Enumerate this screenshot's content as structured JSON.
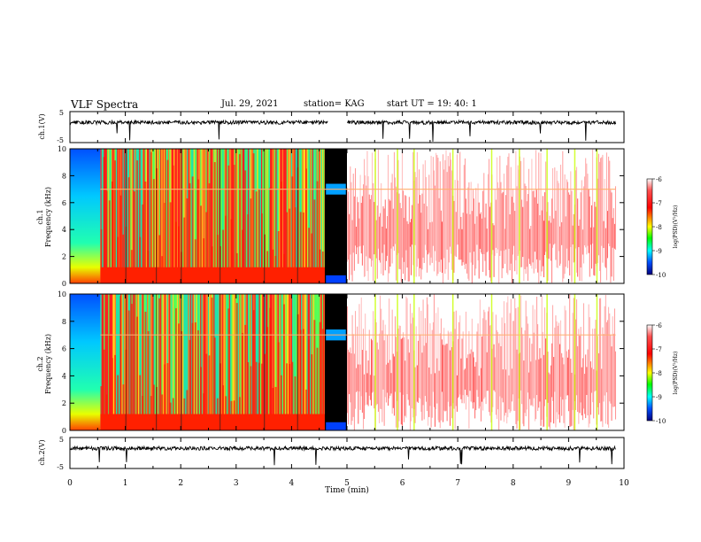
{
  "header": {
    "title": "VLF Spectra",
    "date": "Jul. 29, 2021",
    "station": "station= KAG",
    "start": "start UT =  19: 40: 1"
  },
  "chart_data": [
    {
      "type": "line",
      "panel": "ch1-waveform",
      "ylabel": "ch.1(V)",
      "ylim": [
        -5,
        5
      ],
      "yticks": [
        "5",
        "-5"
      ],
      "xlim": [
        0,
        10
      ],
      "series": [
        {
          "approx_level": 1.5,
          "gap": [
            4.65,
            5.0
          ]
        }
      ]
    },
    {
      "type": "heatmap",
      "panel": "ch1-spectrogram",
      "ylabel": "ch.1\nFrequency (kHz)",
      "xlim": [
        0,
        10
      ],
      "ylim": [
        0,
        10
      ],
      "yticks": [
        "0",
        "2",
        "4",
        "6",
        "8",
        "10"
      ],
      "colorbar": {
        "label": "log(PSD)(V²/Hz)",
        "ticks": [
          "-6",
          "-7",
          "-8",
          "-9",
          "-10"
        ],
        "range": [
          -10,
          -6
        ]
      },
      "regions": [
        {
          "t0": 0.0,
          "t1": 0.55,
          "level": "blue-cyan (low PSD, ~ -9)"
        },
        {
          "t0": 0.55,
          "t1": 4.6,
          "level": "red/yellow/green (~ -7 to -8)"
        },
        {
          "t0": 4.6,
          "t1": 5.0,
          "level": "black (no data) with line near 7 kHz"
        },
        {
          "t0": 5.0,
          "t1": 9.85,
          "level": "red/white (~ -6 to -7)"
        }
      ],
      "line_kHz": 7.0
    },
    {
      "type": "heatmap",
      "panel": "ch2-spectrogram",
      "ylabel": "ch.2\nFrequency (kHz)",
      "xlim": [
        0,
        10
      ],
      "ylim": [
        0,
        10
      ],
      "yticks": [
        "0",
        "2",
        "4",
        "6",
        "8",
        "10"
      ],
      "colorbar": {
        "label": "log(PSD)(V²/Hz)",
        "ticks": [
          "-6",
          "-7",
          "-8",
          "-9",
          "-10"
        ],
        "range": [
          -10,
          -6
        ]
      },
      "line_kHz": 7.0
    },
    {
      "type": "line",
      "panel": "ch2-waveform",
      "ylabel": "ch.2(V)",
      "ylim": [
        -5,
        5
      ],
      "yticks": [
        "5",
        "-5"
      ],
      "xlim": [
        0,
        10
      ],
      "series": [
        {
          "approx_level": 1.5
        }
      ]
    }
  ],
  "xaxis": {
    "label": "Time (min)",
    "ticks": [
      "0",
      "1",
      "2",
      "3",
      "4",
      "5",
      "6",
      "7",
      "8",
      "9",
      "10"
    ]
  },
  "colors": {
    "cmap": [
      "#00007f",
      "#0000ff",
      "#00c8ff",
      "#00ff80",
      "#80ff00",
      "#ffff00",
      "#ff8000",
      "#ff0000",
      "#ffffff"
    ]
  }
}
